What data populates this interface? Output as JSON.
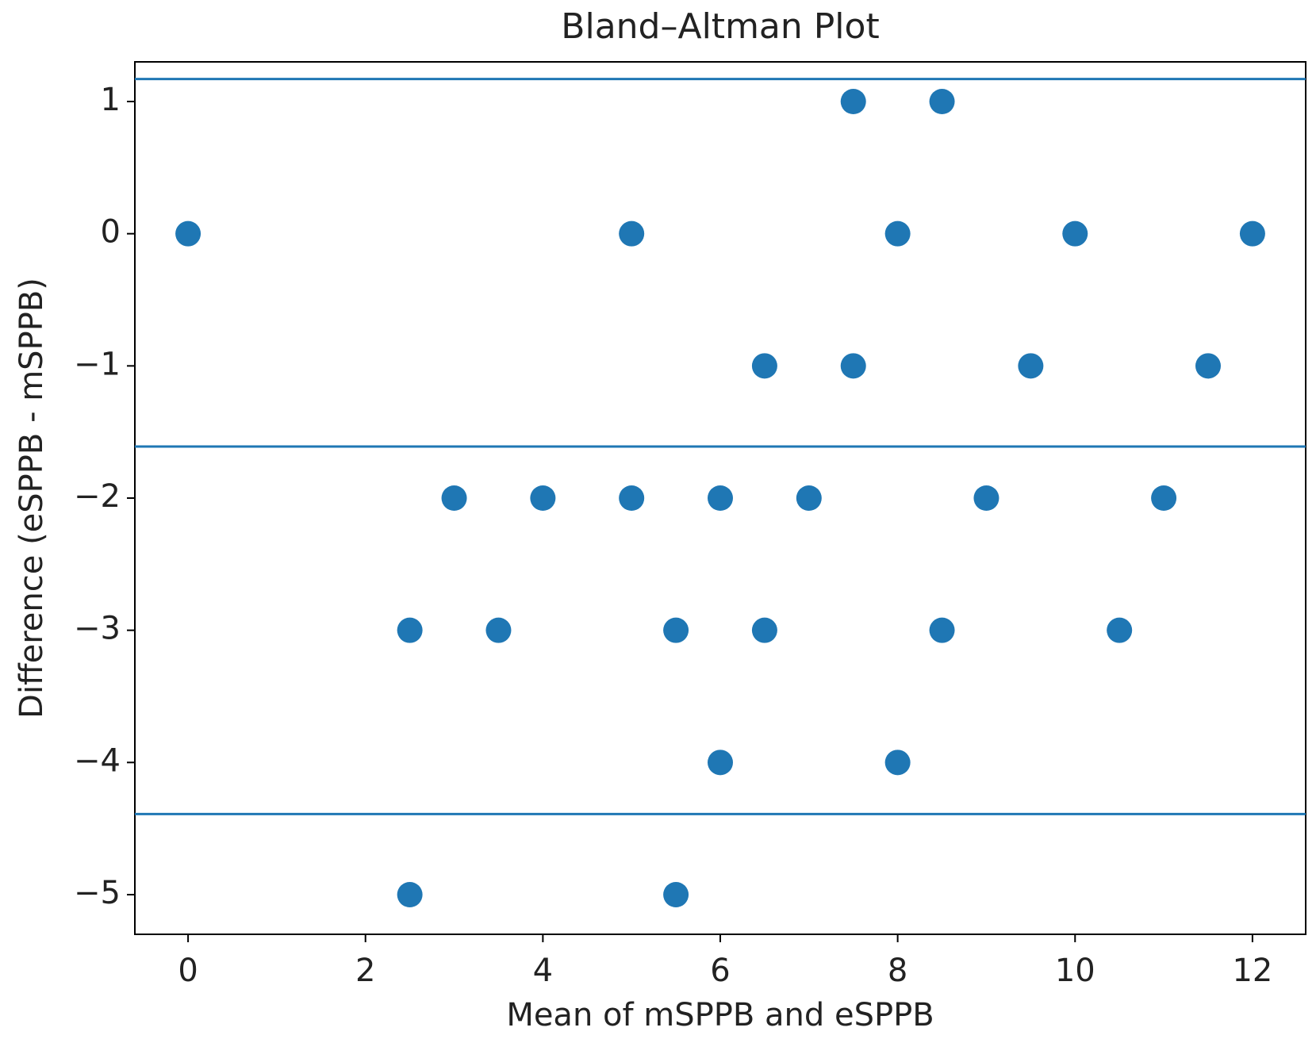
{
  "chart_data": {
    "type": "scatter",
    "title": "Bland–Altman Plot",
    "x_label": "Mean of mSPPB and eSPPB",
    "y_label": "Difference (eSPPB - mSPPB)",
    "x": [
      7.5,
      8.5,
      0,
      5,
      8,
      10,
      12,
      6.5,
      7.5,
      9.5,
      11.5,
      3,
      4,
      5,
      6,
      7,
      9,
      11,
      2.5,
      3.5,
      5.5,
      6.5,
      8.5,
      10.5,
      6,
      8,
      2.5,
      5.5
    ],
    "values": [
      1,
      1,
      0,
      0,
      0,
      0,
      0,
      -1,
      -1,
      -1,
      -1,
      -2,
      -2,
      -2,
      -2,
      -2,
      -2,
      -2,
      -3,
      -3,
      -3,
      -3,
      -3,
      -3,
      -4,
      -4,
      -5,
      -5
    ],
    "color": "#1f77b4",
    "hlines": [
      1.17,
      -1.61,
      -4.39
    ],
    "xlim": [
      -0.6,
      12.6
    ],
    "ylim": [
      -5.3,
      1.3
    ],
    "xticks": [
      0,
      2,
      4,
      6,
      8,
      10,
      12
    ],
    "yticks": [
      {
        "value": -5,
        "label": "−5"
      },
      {
        "value": -4,
        "label": "−4"
      },
      {
        "value": -3,
        "label": "−3"
      },
      {
        "value": -2,
        "label": "−2"
      },
      {
        "value": -1,
        "label": "−1"
      },
      0,
      1
    ]
  }
}
